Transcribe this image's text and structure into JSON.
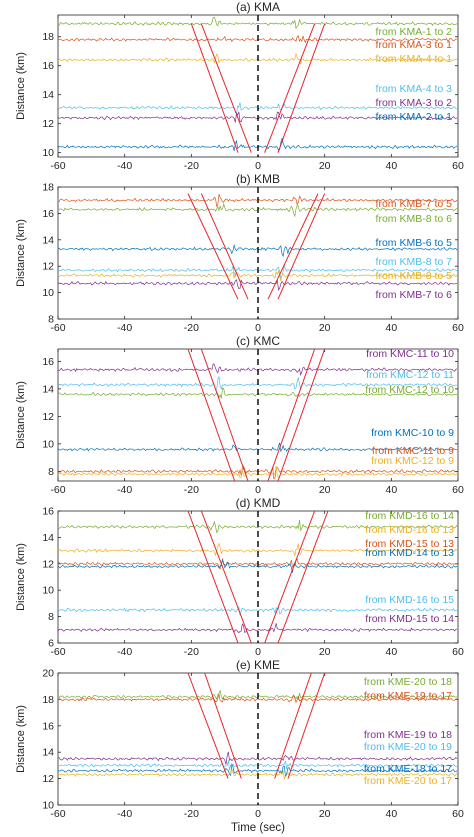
{
  "figure": {
    "xlabel": "Time (sec)"
  },
  "chart_data": [
    {
      "type": "line",
      "title": "(a) KMA",
      "ylabel": "Distance (km)",
      "xlim": [
        -60,
        60
      ],
      "ylim": [
        9.7,
        19.5
      ],
      "xticks": [
        -60,
        -40,
        -20,
        0,
        20,
        40,
        60
      ],
      "yticks": [
        10,
        12,
        14,
        16,
        18
      ],
      "series": [
        {
          "name": "from KMA-1 to 2",
          "distance": 18.9,
          "color": "#77ac30",
          "arrivals": [
            -13.0,
            11.5
          ]
        },
        {
          "name": "from KMA-3 to 1",
          "distance": 17.8,
          "color": "#d95319",
          "arrivals": [
            -9.0,
            13.0
          ]
        },
        {
          "name": "from KMA-4 to 1",
          "distance": 16.4,
          "color": "#edb120",
          "arrivals": [
            -12.0,
            12.0
          ]
        },
        {
          "name": "from KMA-4 to 3",
          "distance": 13.1,
          "color": "#4dbeee",
          "arrivals": [
            -6.0,
            7.0
          ]
        },
        {
          "name": "from KMA-3 to 2",
          "distance": 12.4,
          "color": "#7e2f8e",
          "arrivals": [
            -6.0,
            6.5
          ]
        },
        {
          "name": "from KMA-2 to 1",
          "distance": 10.4,
          "color": "#0072bd",
          "arrivals": [
            -6.0,
            7.0
          ]
        }
      ],
      "red_lines": [
        [
          -20,
          18.9,
          -6,
          10.0
        ],
        [
          -17,
          18.9,
          -2,
          10.0
        ],
        [
          2,
          10.0,
          17,
          18.9
        ],
        [
          6,
          10.0,
          20,
          18.9
        ]
      ]
    },
    {
      "type": "line",
      "title": "(b) KMB",
      "ylabel": "Distance (km)",
      "xlim": [
        -60,
        60
      ],
      "ylim": [
        8,
        18
      ],
      "xticks": [
        -60,
        -40,
        -20,
        0,
        20,
        40,
        60
      ],
      "yticks": [
        8,
        10,
        12,
        14,
        16,
        18
      ],
      "series": [
        {
          "name": "from KMB-7 to 5",
          "distance": 17.0,
          "color": "#d95319",
          "arrivals": [
            -12.0,
            12.0
          ]
        },
        {
          "name": "from KMB-8 to 6",
          "distance": 16.3,
          "color": "#77ac30",
          "arrivals": [
            -11.0,
            11.0
          ]
        },
        {
          "name": "from KMB-6 to 5",
          "distance": 13.3,
          "color": "#0072bd",
          "arrivals": [
            -8.0,
            8.0
          ]
        },
        {
          "name": "from KMB-8 to 7",
          "distance": 11.7,
          "color": "#4dbeee",
          "arrivals": [
            -7.0,
            7.0
          ]
        },
        {
          "name": "from KMB-8 to 5",
          "distance": 11.3,
          "color": "#edb120",
          "arrivals": [
            -6.5,
            6.5
          ]
        },
        {
          "name": "from KMB-7 to 6",
          "distance": 10.7,
          "color": "#7e2f8e",
          "arrivals": [
            -6.0,
            6.0
          ]
        }
      ],
      "red_lines": [
        [
          -21,
          17.5,
          -6,
          9.5
        ],
        [
          -17,
          17.5,
          -3,
          9.5
        ],
        [
          3,
          9.5,
          18,
          17.5
        ],
        [
          6,
          9.5,
          20,
          17.5
        ]
      ]
    },
    {
      "type": "line",
      "title": "(c) KMC",
      "ylabel": "Distance (km)",
      "xlim": [
        -60,
        60
      ],
      "ylim": [
        7.3,
        16.9
      ],
      "xticks": [
        -60,
        -40,
        -20,
        0,
        20,
        40,
        60
      ],
      "yticks": [
        8,
        10,
        12,
        14,
        16
      ],
      "series": [
        {
          "name": "from KMC-11 to 10",
          "distance": 15.4,
          "color": "#7e2f8e",
          "arrivals": [
            -13.0,
            13.0
          ]
        },
        {
          "name": "from KMC-12 to 11",
          "distance": 14.3,
          "color": "#4dbeee",
          "arrivals": [
            -12.0,
            12.0
          ]
        },
        {
          "name": "from KMC-12 to 10",
          "distance": 13.6,
          "color": "#77ac30",
          "arrivals": [
            -11.0,
            11.0
          ]
        },
        {
          "name": "from KMC-10 to 9",
          "distance": 9.6,
          "color": "#0072bd",
          "arrivals": [
            -6.5,
            6.5
          ]
        },
        {
          "name": "from KMC-11 to 9",
          "distance": 8.0,
          "color": "#d95319",
          "arrivals": [
            -5.0,
            5.0
          ]
        },
        {
          "name": "from KMC-12 to 9",
          "distance": 7.8,
          "color": "#edb120",
          "arrivals": [
            -5.0,
            5.0
          ]
        }
      ],
      "red_lines": [
        [
          -21,
          16.9,
          -7,
          7.3
        ],
        [
          -17,
          16.9,
          -3,
          7.3
        ],
        [
          3,
          7.3,
          17,
          16.9
        ],
        [
          6,
          7.3,
          20,
          16.9
        ]
      ]
    },
    {
      "type": "line",
      "title": "(d) KMD",
      "ylabel": "Distance (km)",
      "xlim": [
        -60,
        60
      ],
      "ylim": [
        6,
        16
      ],
      "xticks": [
        -60,
        -40,
        -20,
        0,
        20,
        40,
        60
      ],
      "yticks": [
        6,
        8,
        10,
        12,
        14,
        16
      ],
      "series": [
        {
          "name": "from KMD-16 to 14",
          "distance": 14.8,
          "color": "#77ac30",
          "arrivals": [
            -13.0,
            13.0
          ]
        },
        {
          "name": "from KMD-16 to 13",
          "distance": 13.0,
          "color": "#edb120",
          "arrivals": [
            -12.0,
            12.0
          ]
        },
        {
          "name": "from KMD-15 to 13",
          "distance": 12.0,
          "color": "#d95319",
          "arrivals": [
            -11.0,
            11.0
          ]
        },
        {
          "name": "from KMD-14 to 13",
          "distance": 11.8,
          "color": "#0072bd",
          "arrivals": [
            -10.0,
            10.0
          ]
        },
        {
          "name": "from KMD-16 to 15",
          "distance": 8.5,
          "color": "#4dbeee",
          "arrivals": [
            -6.0,
            6.0
          ]
        },
        {
          "name": "from KMD-15 to 14",
          "distance": 7.0,
          "color": "#7e2f8e",
          "arrivals": [
            -5.0,
            5.0
          ]
        }
      ],
      "red_lines": [
        [
          -21,
          16,
          -6,
          6
        ],
        [
          -17,
          16,
          -2,
          6
        ],
        [
          2,
          6,
          17,
          16
        ],
        [
          6,
          6,
          21,
          16
        ]
      ]
    },
    {
      "type": "line",
      "title": "(e) KME",
      "ylabel": "Distance (km)",
      "xlim": [
        -60,
        60
      ],
      "ylim": [
        10,
        20
      ],
      "xticks": [
        -60,
        -40,
        -20,
        0,
        20,
        40,
        60
      ],
      "yticks": [
        10,
        12,
        14,
        16,
        18,
        20
      ],
      "series": [
        {
          "name": "from KME-20 to 18",
          "distance": 18.2,
          "color": "#77ac30",
          "arrivals": [
            -12.0,
            12.0
          ]
        },
        {
          "name": "from KME-19 to 17",
          "distance": 18.0,
          "color": "#d95319",
          "arrivals": [
            -11.0,
            11.0
          ]
        },
        {
          "name": "from KME-19 to 18",
          "distance": 13.5,
          "color": "#7e2f8e",
          "arrivals": [
            -9.0,
            9.0
          ]
        },
        {
          "name": "from KME-20 to 19",
          "distance": 13.0,
          "color": "#4dbeee",
          "arrivals": [
            -8.5,
            8.5
          ]
        },
        {
          "name": "from KME-18 to 17",
          "distance": 12.6,
          "color": "#0072bd",
          "arrivals": [
            -8.0,
            8.0
          ]
        },
        {
          "name": "from KME-20 to 17",
          "distance": 12.3,
          "color": "#edb120",
          "arrivals": [
            -8.0,
            8.0
          ]
        }
      ],
      "red_lines": [
        [
          -21,
          20,
          -9,
          12
        ],
        [
          -16,
          20,
          -5,
          12
        ],
        [
          5,
          12,
          16,
          20
        ],
        [
          9,
          12,
          20,
          20
        ]
      ]
    }
  ]
}
